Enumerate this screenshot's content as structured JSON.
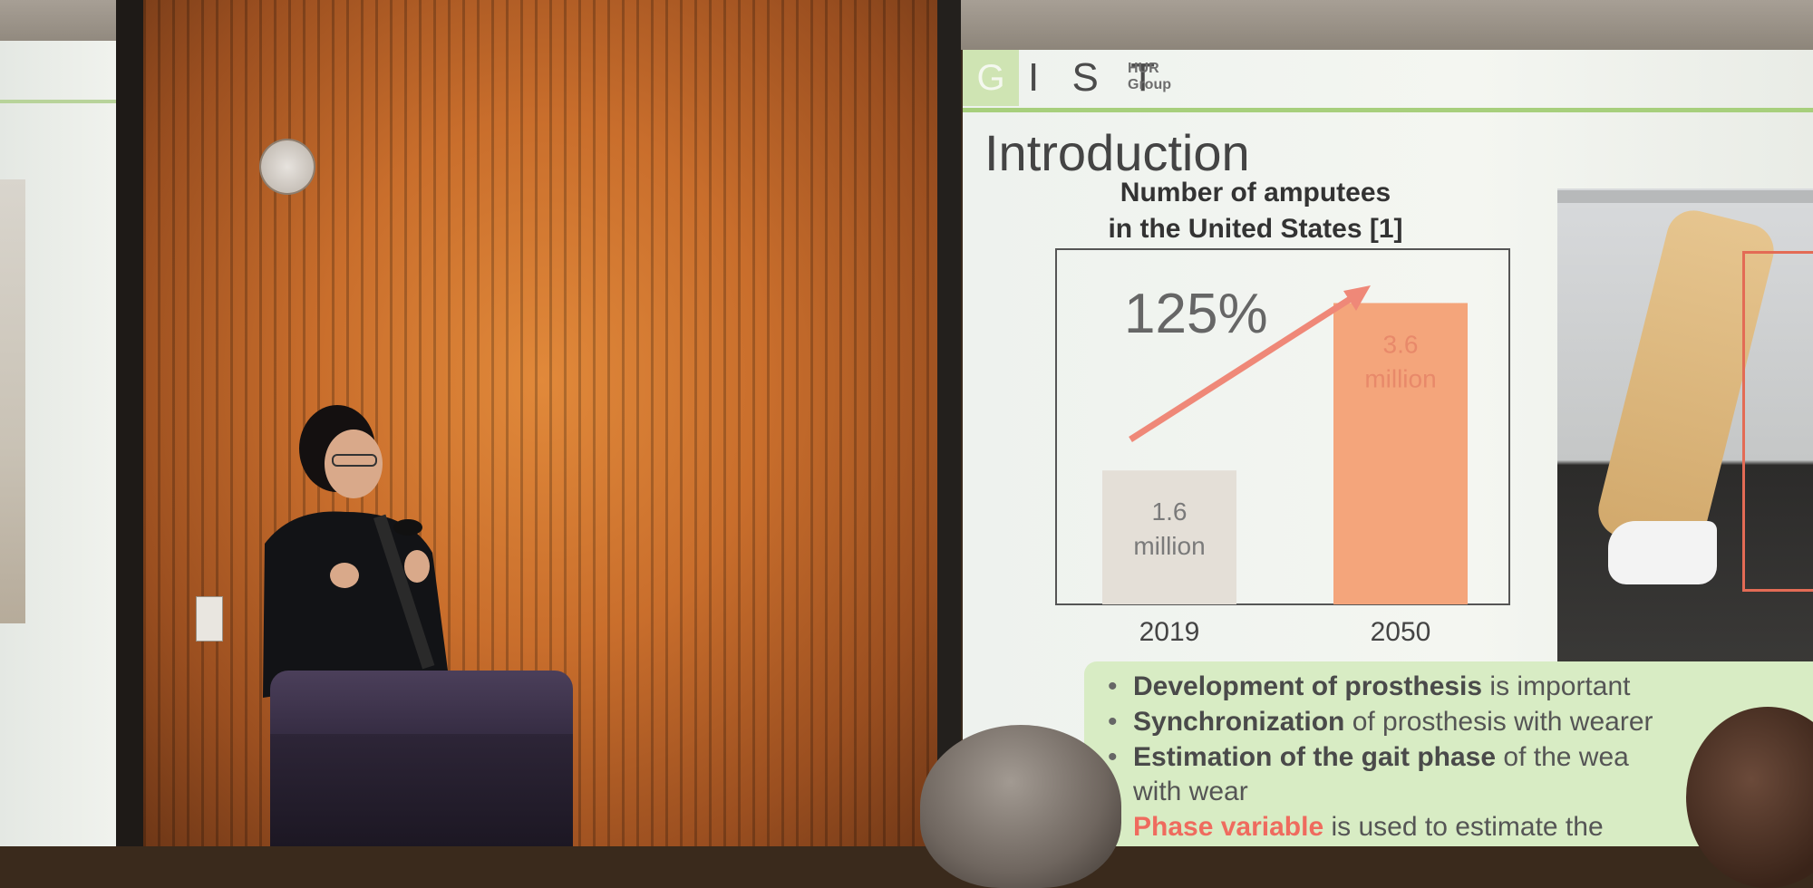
{
  "slide": {
    "logo_letter": "G",
    "logo_rest": "I S T",
    "group_line1": "HUR",
    "group_line2": "Group",
    "title": "Introduction",
    "chart_title_line1": "Number of amputees",
    "chart_title_line2": "in the United States [1]",
    "bullets": [
      {
        "bold": "Development of prosthesis",
        "rest": " is important"
      },
      {
        "bold": "Synchronization",
        "rest": " of prosthesis with wearer"
      },
      {
        "bold": "Estimation of the gait phase",
        "rest": " of the wea"
      },
      {
        "bold": "",
        "rest": "with wear"
      },
      {
        "bold": "Phase variable",
        "rest": " is used to estimate the"
      }
    ]
  },
  "chart_data": {
    "type": "bar",
    "title": "Number of amputees in the United States [1]",
    "categories": [
      "2019",
      "2050"
    ],
    "values": [
      1.6,
      3.6
    ],
    "value_labels": [
      "1.6 million",
      "3.6 million"
    ],
    "unit": "million",
    "ylim": [
      0,
      4.2
    ],
    "colors": [
      "#e4dfd7",
      "#f4a57b"
    ],
    "annotation": "125%",
    "arrow_color": "#ef8878"
  }
}
